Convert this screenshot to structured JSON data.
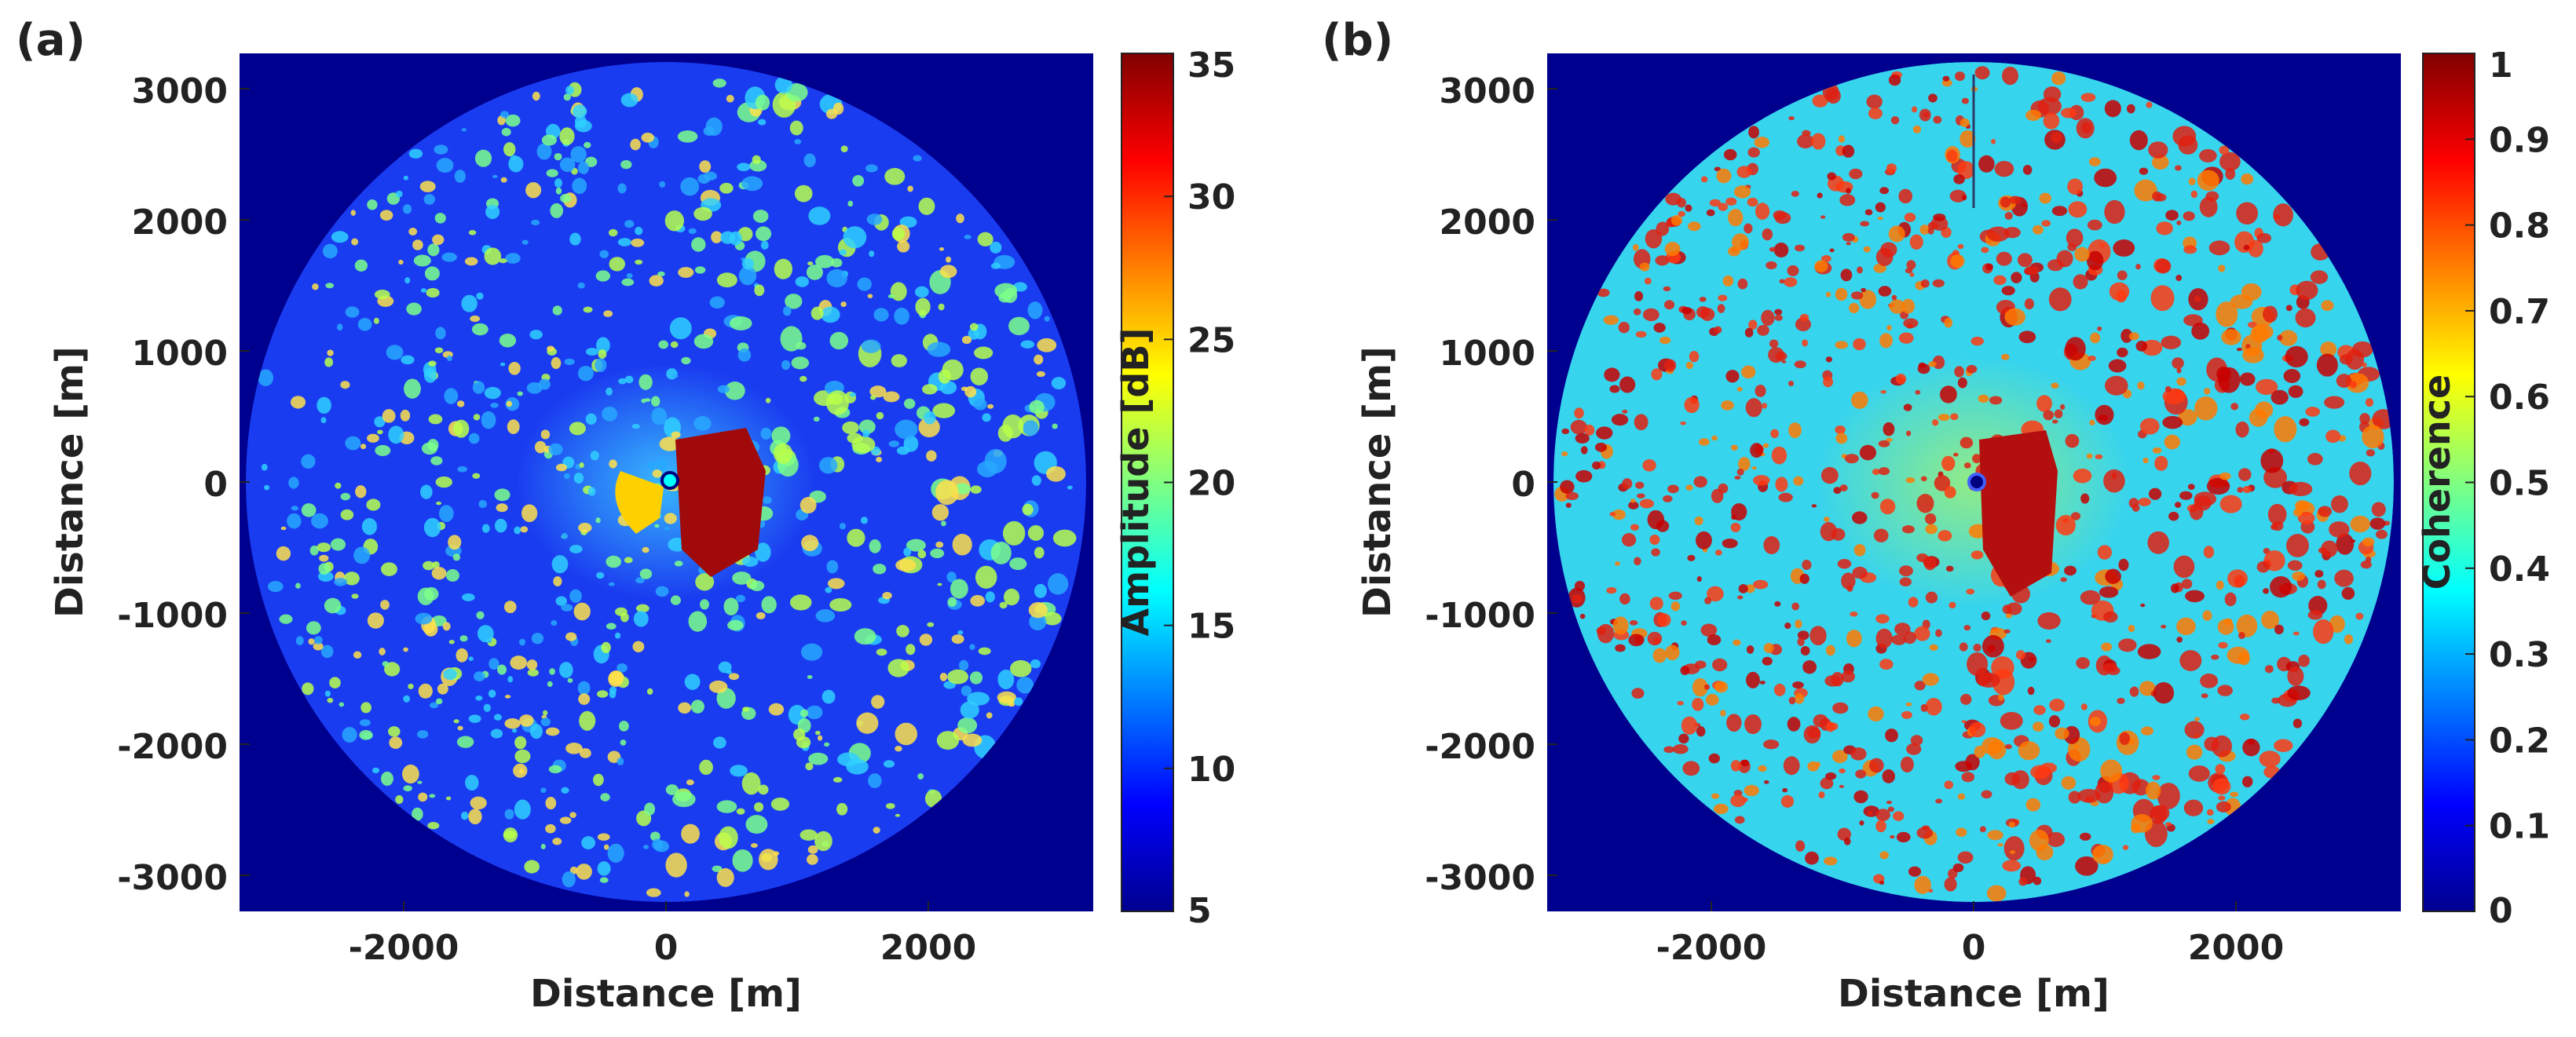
{
  "figure": {
    "panels": [
      {
        "id": "a",
        "panel_label": "(a)",
        "colormap": "jet",
        "background_color": "#00008f",
        "disk_base_color": "#1a3cf0",
        "near_field_color": "#3cc8ff",
        "colorbar_title": "Amplitude [dB]",
        "colorbar_ticks": [
          "35",
          "30",
          "25",
          "20",
          "15",
          "10",
          "5"
        ]
      },
      {
        "id": "b",
        "panel_label": "(b)",
        "colormap": "jet",
        "background_color": "#00008f",
        "disk_base_color": "#37d4ee",
        "near_field_color": "#9cee7a",
        "colorbar_title": "Coherence",
        "colorbar_ticks": [
          "1",
          "0.9",
          "0.8",
          "0.7",
          "0.6",
          "0.5",
          "0.4",
          "0.3",
          "0.2",
          "0.1",
          "0"
        ]
      }
    ]
  },
  "chart_data": [
    {
      "type": "heatmap",
      "title": "(a)",
      "xlabel": "Distance [m]",
      "ylabel": "Distance [m]",
      "xlim": [
        -3200,
        3200
      ],
      "ylim": [
        -3200,
        3200
      ],
      "x_ticks": [
        -2000,
        0,
        2000
      ],
      "x_tick_labels": [
        "-2000",
        "0",
        "2000"
      ],
      "y_ticks": [
        3000,
        2000,
        1000,
        0,
        -1000,
        -2000,
        -3000
      ],
      "y_tick_labels": [
        "3000",
        "2000",
        "1000",
        "0",
        "-1000",
        "-2000",
        "-3000"
      ],
      "coverage_radius_m": 3100,
      "colorbar": {
        "label": "Amplitude [dB]",
        "min": 5,
        "max": 35,
        "ticks": [
          35,
          30,
          25,
          20,
          15,
          10,
          5
        ]
      }
    },
    {
      "type": "heatmap",
      "title": "(b)",
      "xlabel": "Distance [m]",
      "ylabel": "Distance [m]",
      "xlim": [
        -3200,
        3200
      ],
      "ylim": [
        -3200,
        3200
      ],
      "x_ticks": [
        -2000,
        0,
        2000
      ],
      "x_tick_labels": [
        "-2000",
        "0",
        "2000"
      ],
      "y_ticks": [
        3000,
        2000,
        1000,
        0,
        -1000,
        -2000,
        -3000
      ],
      "y_tick_labels": [
        "3000",
        "2000",
        "1000",
        "0",
        "-1000",
        "-2000",
        "-3000"
      ],
      "coverage_radius_m": 3100,
      "colorbar": {
        "label": "Coherence",
        "min": 0,
        "max": 1,
        "ticks": [
          1,
          0.9,
          0.8,
          0.7,
          0.6,
          0.5,
          0.4,
          0.3,
          0.2,
          0.1,
          0
        ]
      }
    }
  ]
}
